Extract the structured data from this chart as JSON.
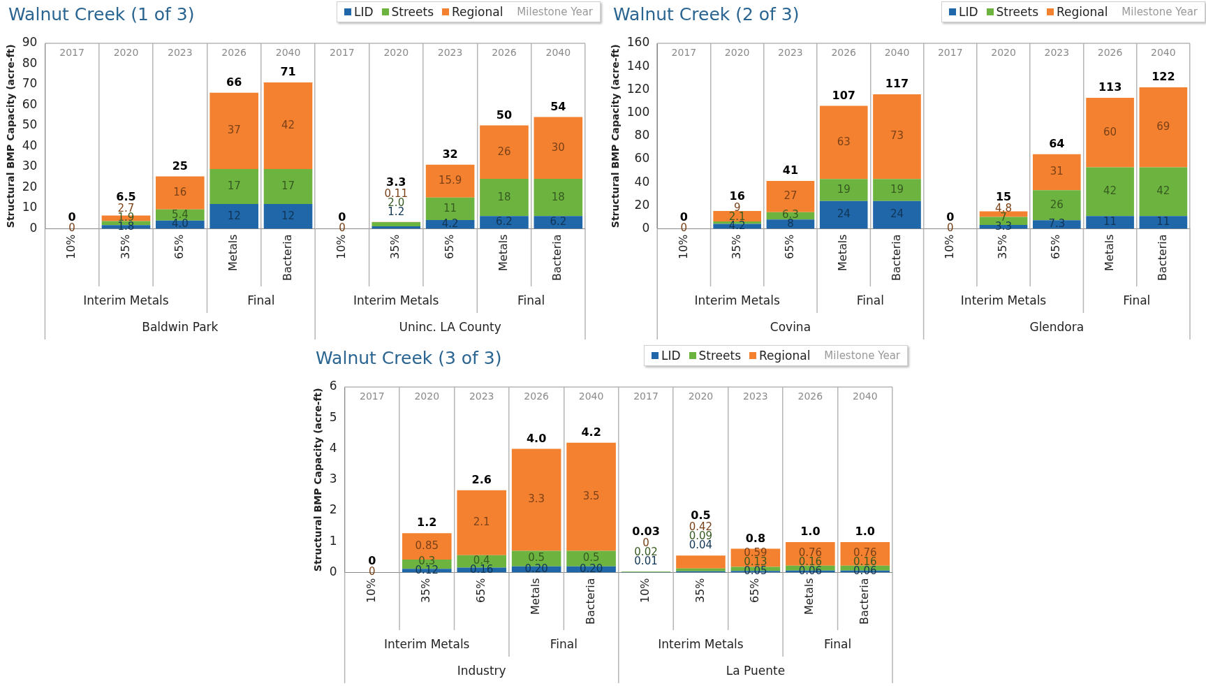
{
  "chart_data": [
    {
      "type": "bar",
      "title": "Walnut Creek (1 of 3)",
      "ylabel": "Structural BMP Capacity (acre-ft)",
      "stacked": true,
      "legend": "top right",
      "grid": "x",
      "categories": [
        "10%",
        "35%",
        "65%",
        "Metals",
        "Bacteria",
        "10%",
        "35%",
        "65%",
        "Metals",
        "Bacteria"
      ],
      "ylim": [
        0,
        90
      ],
      "yticks": [
        0,
        10,
        20,
        30,
        40,
        50,
        60,
        70,
        80,
        90
      ],
      "series": [
        {
          "name": "LID",
          "color": "#1f67a8",
          "values": [
            0,
            1.8,
            4.0,
            12,
            12,
            0,
            1.2,
            4.2,
            6.2,
            6.2
          ],
          "value_labels": [
            null,
            "1.8",
            "4.0",
            "12",
            "12",
            null,
            "1.2",
            "4.2",
            "6.2",
            "6.2"
          ]
        },
        {
          "name": "Streets",
          "color": "#6cb33f",
          "values": [
            0,
            1.9,
            5.4,
            17,
            17,
            0,
            2.0,
            11,
            18,
            18
          ],
          "value_labels": [
            null,
            "1.9",
            "5.4",
            "17",
            "17",
            null,
            "2.0",
            "11",
            "18",
            "18"
          ]
        },
        {
          "name": "Regional",
          "color": "#f4812f",
          "values": [
            0,
            2.7,
            16,
            37,
            42,
            0,
            0.11,
            15.9,
            26,
            30
          ],
          "value_labels": [
            "0",
            "2.7",
            "16",
            "37",
            "42",
            "0",
            "0.11",
            "15.9",
            "26",
            "30"
          ]
        }
      ],
      "totals": [
        "0",
        "6.5",
        "25",
        "66",
        "71",
        "0",
        "3.3",
        "32",
        "50",
        "54"
      ],
      "annotations": [
        "Milestone Year",
        "2017",
        "2020",
        "2023",
        "2026",
        "2040",
        "2017",
        "2020",
        "2023",
        "2026",
        "2040",
        "Interim Metals",
        "Final",
        "Interim Metals",
        "Final",
        "Baldwin Park",
        "Uninc. LA County"
      ]
    },
    {
      "type": "bar",
      "title": "Walnut Creek (2 of 3)",
      "ylabel": "Structural BMP Capacity (acre-ft)",
      "stacked": true,
      "legend": "top right",
      "grid": "x",
      "categories": [
        "10%",
        "35%",
        "65%",
        "Metals",
        "Bacteria",
        "10%",
        "35%",
        "65%",
        "Metals",
        "Bacteria"
      ],
      "ylim": [
        0,
        160
      ],
      "yticks": [
        0,
        20,
        40,
        60,
        80,
        100,
        120,
        140,
        160
      ],
      "series": [
        {
          "name": "LID",
          "color": "#1f67a8",
          "values": [
            0,
            4.2,
            8,
            24,
            24,
            0,
            3.3,
            7.3,
            11,
            11
          ],
          "value_labels": [
            null,
            "4.2",
            "8",
            "24",
            "24",
            null,
            "3.3",
            "7.3",
            "11",
            "11"
          ]
        },
        {
          "name": "Streets",
          "color": "#6cb33f",
          "values": [
            0,
            2.1,
            6.3,
            19,
            19,
            0,
            7,
            26,
            42,
            42
          ],
          "value_labels": [
            null,
            "2.1",
            "6.3",
            "19",
            "19",
            null,
            "7",
            "26",
            "42",
            "42"
          ]
        },
        {
          "name": "Regional",
          "color": "#f4812f",
          "values": [
            0,
            9,
            27,
            63,
            73,
            0,
            4.8,
            31,
            60,
            69
          ],
          "value_labels": [
            "0",
            "9",
            "27",
            "63",
            "73",
            "0",
            "4.8",
            "31",
            "60",
            "69"
          ]
        }
      ],
      "totals": [
        "0",
        "16",
        "41",
        "107",
        "117",
        "0",
        "15",
        "64",
        "113",
        "122"
      ],
      "annotations": [
        "Milestone Year",
        "2017",
        "2020",
        "2023",
        "2026",
        "2040",
        "2017",
        "2020",
        "2023",
        "2026",
        "2040",
        "Interim Metals",
        "Final",
        "Interim Metals",
        "Final",
        "Covina",
        "Glendora"
      ]
    },
    {
      "type": "bar",
      "title": "Walnut Creek (3 of 3)",
      "ylabel": "Structural BMP Capacity (acre-ft)",
      "stacked": true,
      "legend": "top right",
      "grid": "x",
      "categories": [
        "10%",
        "35%",
        "65%",
        "Metals",
        "Bacteria",
        "10%",
        "35%",
        "65%",
        "Metals",
        "Bacteria"
      ],
      "ylim": [
        0,
        6
      ],
      "yticks": [
        0,
        1,
        2,
        3,
        4,
        5,
        6
      ],
      "series": [
        {
          "name": "LID",
          "color": "#1f67a8",
          "values": [
            0,
            0.12,
            0.16,
            0.2,
            0.2,
            0.01,
            0.04,
            0.05,
            0.06,
            0.06
          ],
          "value_labels": [
            null,
            "0.12",
            "0.16",
            "0.20",
            "0.20",
            "0.01",
            "0.04",
            "0.05",
            "0.06",
            "0.06"
          ]
        },
        {
          "name": "Streets",
          "color": "#6cb33f",
          "values": [
            0,
            0.3,
            0.4,
            0.5,
            0.5,
            0.02,
            0.09,
            0.13,
            0.16,
            0.16
          ],
          "value_labels": [
            null,
            "0.3",
            "0.4",
            "0.5",
            "0.5",
            "0.02",
            "0.09",
            "0.13",
            "0.16",
            "0.16"
          ]
        },
        {
          "name": "Regional",
          "color": "#f4812f",
          "values": [
            0,
            0.85,
            2.1,
            3.3,
            3.5,
            0,
            0.42,
            0.59,
            0.76,
            0.76
          ],
          "value_labels": [
            "0",
            "0.85",
            "2.1",
            "3.3",
            "3.5",
            "0",
            "0.42",
            "0.59",
            "0.76",
            "0.76"
          ]
        }
      ],
      "totals": [
        "0",
        "1.2",
        "2.6",
        "4.0",
        "4.2",
        "0.03",
        "0.5",
        "0.8",
        "1.0",
        "1.0"
      ],
      "annotations": [
        "Milestone Year",
        "2017",
        "2020",
        "2023",
        "2026",
        "2040",
        "2017",
        "2020",
        "2023",
        "2026",
        "2040",
        "Interim Metals",
        "Final",
        "Interim Metals",
        "Final",
        "Industry",
        "La Puente"
      ]
    }
  ]
}
